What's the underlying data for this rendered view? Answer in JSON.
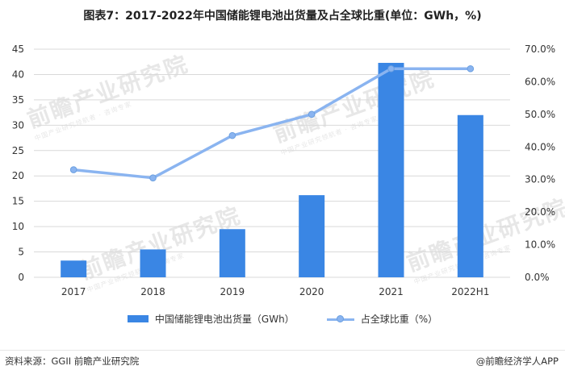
{
  "title": "图表7：2017-2022年中国储能锂电池出货量及占全球比重(单位：GWh，%)",
  "footer": {
    "source": "资料来源：GGII 前瞻产业研究院",
    "credit": "@前瞻经济学人APP"
  },
  "watermark": {
    "text": "前瞻产业研究院",
    "subtext": "中国产业研究领航者 · 咨询专家"
  },
  "colors": {
    "bar": "#3a86e4",
    "line": "#8ab4f0",
    "grid": "#d9d9d9",
    "axis_text": "#333333"
  },
  "chart_data": {
    "type": "bar",
    "categories": [
      "2017",
      "2018",
      "2019",
      "2020",
      "2021",
      "2022H1"
    ],
    "series": [
      {
        "name": "中国储能锂电池出货量（GWh）",
        "type": "bar",
        "axis": "left",
        "values": [
          3.3,
          5.5,
          9.5,
          16.2,
          42.3,
          32.0
        ]
      },
      {
        "name": "占全球比重（%）",
        "type": "line",
        "axis": "right",
        "values": [
          33.0,
          30.5,
          43.5,
          50.0,
          64.0,
          64.0
        ]
      }
    ],
    "y_left": {
      "min": 0,
      "max": 45,
      "ticks": [
        "0",
        "5",
        "10",
        "15",
        "20",
        "25",
        "30",
        "35",
        "40",
        "45"
      ]
    },
    "y_right": {
      "min": 0,
      "max": 70,
      "ticks": [
        "0.0%",
        "10.0%",
        "20.0%",
        "30.0%",
        "40.0%",
        "50.0%",
        "60.0%",
        "70.0%"
      ]
    },
    "grid": true,
    "legend_position": "bottom"
  }
}
